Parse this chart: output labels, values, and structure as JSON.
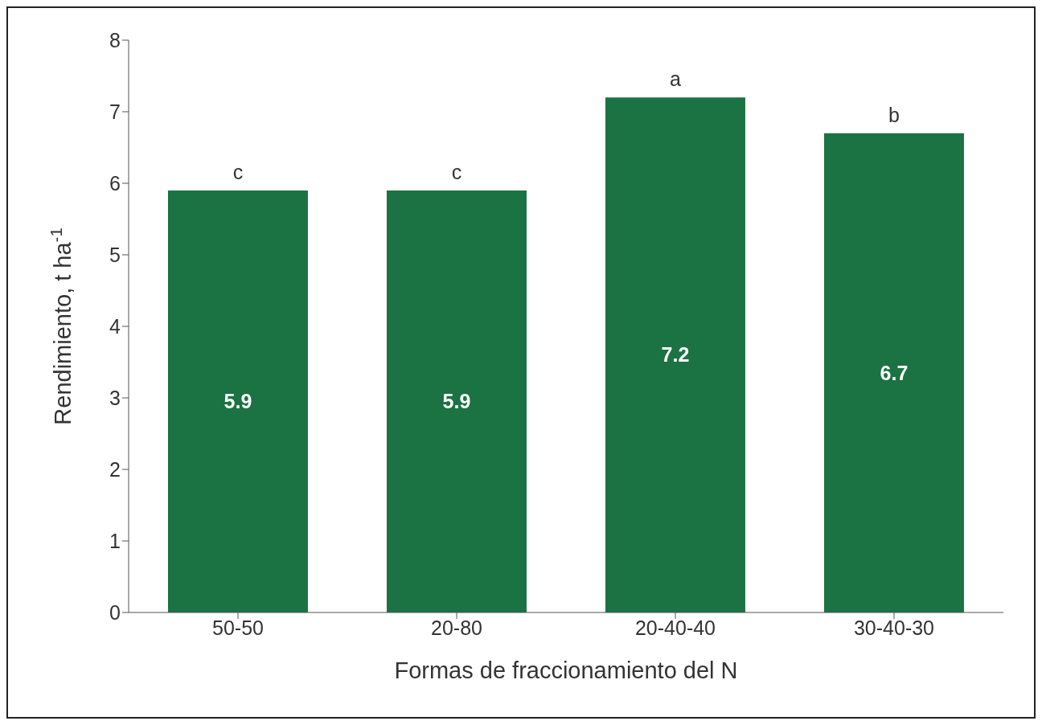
{
  "chart_data": {
    "type": "bar",
    "categories": [
      "50-50",
      "20-80",
      "20-40-40",
      "30-40-30"
    ],
    "values": [
      5.9,
      5.9,
      7.2,
      6.7
    ],
    "color": "#1b7242",
    "ylim": [
      0,
      8
    ],
    "yticks": [
      0,
      1,
      2,
      3,
      4,
      5,
      6,
      7,
      8
    ],
    "grid": false,
    "data_labels": true,
    "xlabel": "Formas de fraccionamiento del N",
    "ylabel": "Rendimiento, t ha$^{-1}$",
    "annotations": [
      {
        "text": "c",
        "x": "50-50",
        "y": 5.9
      },
      {
        "text": "c",
        "x": "20-80",
        "y": 5.9
      },
      {
        "text": "a",
        "x": "20-40-40",
        "y": 7.2
      },
      {
        "text": "b",
        "x": "30-40-30",
        "y": 6.7
      }
    ]
  }
}
